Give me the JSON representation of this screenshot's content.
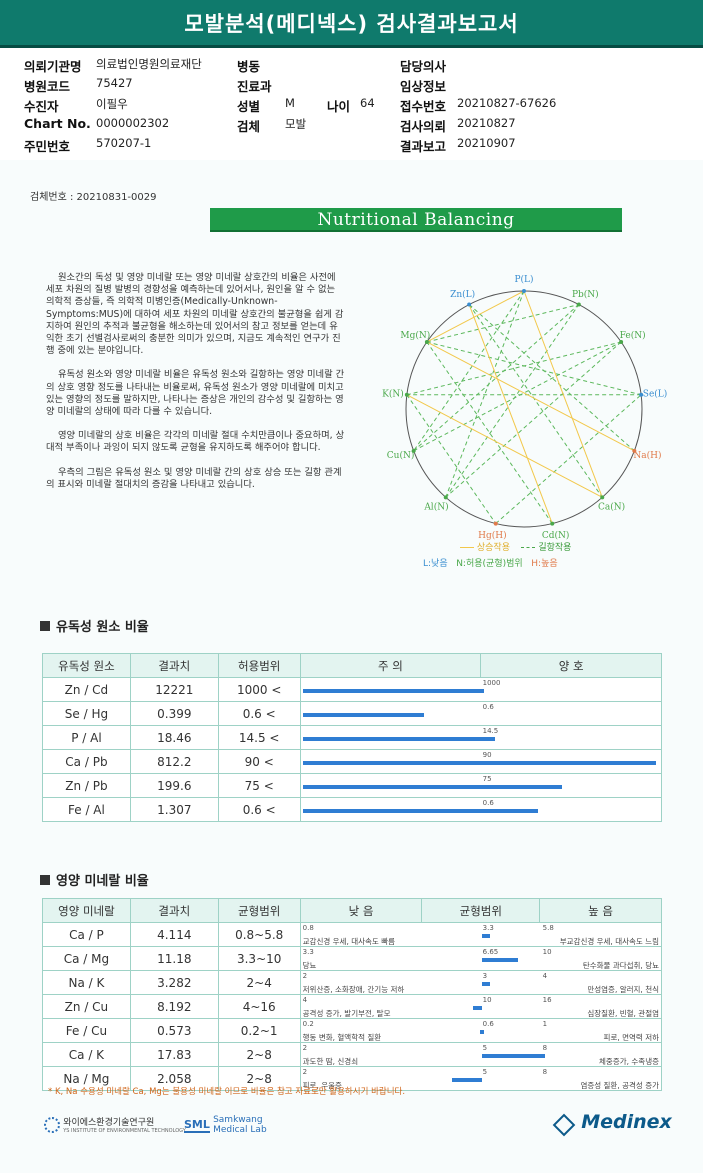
{
  "title": "모발분석(메디넥스) 검사결과보고서",
  "patient_info": {
    "institution_label": "의뢰기관명",
    "institution": "의료법인명원의료재단",
    "ward_label": "병동",
    "doctor_label": "담당의사",
    "hospital_code_label": "병원코드",
    "hospital_code": "75427",
    "dept_label": "진료과",
    "clinical_label": "임상정보",
    "patient_label": "수진자",
    "patient": "이필우",
    "gender_label": "성별",
    "gender": "M",
    "age_label": "나이",
    "age": "64",
    "reception_label": "접수번호",
    "reception": "20210827-67626",
    "chart_label": "Chart No.",
    "chart": "0000002302",
    "specimen_label": "검체",
    "specimen": "모발",
    "test_date_label": "검사의뢰",
    "test_date": "20210827",
    "id_label": "주민번호",
    "id": "570207-1",
    "report_date_label": "결과보고",
    "report_date": "20210907"
  },
  "specimen_no": "검체번호 : 20210831-0029",
  "banner": "Nutritional Balancing",
  "intro": [
    "원소간의 독성 및 영양 미네랄 또는 영양 미네랄 상호간의 비율은 사전에 세포 차원의 질병 발병의 경향성을 예측하는데 있어서나, 원인을 알 수 없는 의학적 증상들, 즉 의학적 미병인증(Medically-Unknown-Symptoms:MUS)에 대하여 세포 차원의 미네랄 상호간의 불균형을 쉽게 감지하여 원인의 추적과 불균형을 해소하는데 있어서의 참고 정보를 얻는데 유익한 초기 선별검사로써의 충분한 의미가 있으며, 지금도 계속적인 연구가 진행 중에 있는 분야입니다.",
    "유독성 원소와 영양 미네랄 비율은 유독성 원소와 길항하는 영양 미네랄 간의 상호 영향 정도를 나타내는 비율로써, 유독성 원소가 영양 미네랄에 미치고 있는 영향의 정도를 말하지만, 나타나는 증상은 개인의 감수성 및 길항하는 영양 미네랄의 상태에 따라 다를 수 있습니다.",
    "영양 미네랄의 상호 비율은 각각의 미네랄 절대 수치만큼이나 중요하며, 상대적 부족이나 과잉이 되지 않도록 균형을 유지하도록 해주어야 합니다.",
    "우측의 그림은 유독성 원소 및 영양 미네랄 간의 상호 상승 또는 길항 관계의 표시와 미네랄 절대치의 증감을 나타내고 있습니다."
  ],
  "wheel": {
    "nodes": [
      {
        "label": "P(L)",
        "color": "#3a8ed0"
      },
      {
        "label": "Pb(N)",
        "color": "#4aa84a"
      },
      {
        "label": "Fe(N)",
        "color": "#4aa84a"
      },
      {
        "label": "Se(L)",
        "color": "#3a8ed0"
      },
      {
        "label": "Na(H)",
        "color": "#e07a4a"
      },
      {
        "label": "Ca(N)",
        "color": "#4aa84a"
      },
      {
        "label": "Cd(N)",
        "color": "#4aa84a"
      },
      {
        "label": "Hg(H)",
        "color": "#e07a4a"
      },
      {
        "label": "Al(N)",
        "color": "#4aa84a"
      },
      {
        "label": "Cu(N)",
        "color": "#4aa84a"
      },
      {
        "label": "K(N)",
        "color": "#4aa84a"
      },
      {
        "label": "Mg(N)",
        "color": "#4aa84a"
      },
      {
        "label": "Zn(L)",
        "color": "#3a8ed0"
      }
    ],
    "synergy_label": "상승작용",
    "antagonism_label": "길항작용",
    "low_label": "L:낮음",
    "normal_label": "N:허용(균형)범위",
    "high_label": "H:높음"
  },
  "toxic": {
    "section_title": "유독성 원소 비율",
    "headers": [
      "유독성 원소",
      "결과치",
      "허용범위",
      "주          의",
      "양          호"
    ],
    "rows": [
      {
        "ratio": "Zn / Cd",
        "value": "12221",
        "range": "1000 <",
        "limit": "1000",
        "bar_fraction": 1.0
      },
      {
        "ratio": "Se / Hg",
        "value": "0.399",
        "range": "0.6 <",
        "limit": "0.6",
        "bar_fraction": 0.67
      },
      {
        "ratio": "P  /  Al",
        "value": "18.46",
        "range": "14.5 <",
        "limit": "14.5",
        "bar_fraction": 1.06
      },
      {
        "ratio": "Ca / Pb",
        "value": "812.2",
        "range": "90 <",
        "limit": "90",
        "bar_fraction": 1.95
      },
      {
        "ratio": "Zn / Pb",
        "value": "199.6",
        "range": "75 <",
        "limit": "75",
        "bar_fraction": 1.43
      },
      {
        "ratio": "Fe  /  Al",
        "value": "1.307",
        "range": "0.6 <",
        "limit": "0.6",
        "bar_fraction": 1.3
      }
    ]
  },
  "nutrition": {
    "section_title": "영양 미네랄 비율",
    "headers": [
      "영양 미네랄",
      "결과치",
      "균형범위",
      "낮          음",
      "균형범위",
      "높          음"
    ],
    "rows": [
      {
        "ratio": "Ca / P",
        "value": "4.114",
        "range": "0.8~5.8",
        "low": "0.8",
        "mid": "3.3",
        "high": "5.8",
        "low_desc": "교감신경 우세, 대사속도 빠름",
        "high_desc": "부교감신경 우세, 대사속도 느림",
        "offset": 0.26
      },
      {
        "ratio": "Ca / Mg",
        "value": "11.18",
        "range": "3.3~10",
        "low": "3.3",
        "mid": "6.65",
        "high": "10",
        "low_desc": "당뇨",
        "high_desc": "탄수화물 과다섭취, 당뇨",
        "offset": 1.2
      },
      {
        "ratio": "Na / K",
        "value": "3.282",
        "range": "2~4",
        "low": "2",
        "mid": "3",
        "high": "4",
        "low_desc": "저위산증, 소화장애, 간기능 저하",
        "high_desc": "만성염증, 알러지, 천식",
        "offset": 0.28
      },
      {
        "ratio": "Zn / Cu",
        "value": "8.192",
        "range": "4~16",
        "low": "4",
        "mid": "10",
        "high": "16",
        "low_desc": "공격성 증가, 발기부전, 탈모",
        "high_desc": "심장질환, 빈혈, 관절염",
        "offset": -0.3
      },
      {
        "ratio": "Fe / Cu",
        "value": "0.573",
        "range": "0.2~1",
        "low": "0.2",
        "mid": "0.6",
        "high": "1",
        "low_desc": "행동 변화, 혈액학적 질환",
        "high_desc": "피로, 면역력 저하",
        "offset": -0.05
      },
      {
        "ratio": "Ca / K",
        "value": "17.83",
        "range": "2~8",
        "low": "2",
        "mid": "5",
        "high": "8",
        "low_desc": "과도한 땀, 신경쇠",
        "high_desc": "체중증가, 수족냉증",
        "offset": 2.1
      },
      {
        "ratio": "Na / Mg",
        "value": "2.058",
        "range": "2~8",
        "low": "2",
        "mid": "5",
        "high": "8",
        "low_desc": "피로, 우울증",
        "high_desc": "염증성 질환, 공격성 증가",
        "offset": -1.0
      }
    ]
  },
  "footnote": "* K, Na 수용성 미네랄 Ca, Mg는 불용성 미네랄 이므로 비율은 참고 자료로만 활용하시기 바랍니다.",
  "footer": {
    "logo1": "와이에스환경기술연구원",
    "logo1_sub": "YS INSTITUTE OF ENVIRONMENTAL TECHNOLOGY",
    "logo2_mark": "SML",
    "logo2": "Samkwang Medical Lab",
    "logo3": "Medinex"
  }
}
